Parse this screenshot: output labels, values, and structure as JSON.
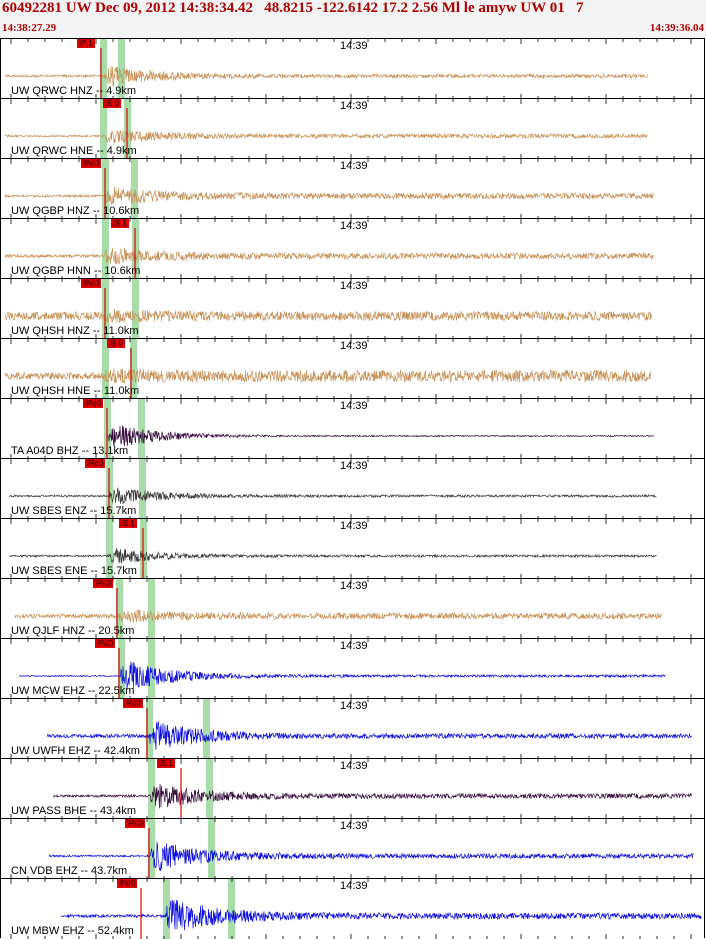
{
  "header": {
    "title": "60492281 UW Dec 09, 2012 14:38:34.42   48.8215 -122.6142 17.2 2.56 Ml le amyw UW 01   7",
    "start_time": "14:38:27.29",
    "end_time": "14:39:36.04"
  },
  "colors": {
    "tan": "#c8935a",
    "dark": "#3c3c3c",
    "blue": "#1010e0",
    "purple": "#3a1040",
    "pick": "#e00000",
    "green": "#a8dca8"
  },
  "traces": [
    {
      "label": "UW QRWC HNZ -- 4.9km",
      "time": "14:39",
      "pick": "iP 1",
      "color": "tan",
      "pickX": 100,
      "start": 4,
      "onset": 102,
      "end": 646,
      "pre": 0.04,
      "peak": 0.42,
      "tail": 0.06,
      "gx": [
        102,
        120
      ]
    },
    {
      "label": "UW QRWC HNE -- 4.9km",
      "time": "14:39",
      "pick": "iS 0",
      "color": "tan",
      "pickX": 126,
      "start": 4,
      "onset": 104,
      "end": 646,
      "pre": 0.03,
      "peak": 0.3,
      "tail": 0.07,
      "gx": [
        102,
        126
      ]
    },
    {
      "label": "UW QGBP HNZ -- 10.6km",
      "time": "14:39",
      "pick": "iPd0",
      "color": "tan",
      "pickX": 104,
      "start": 4,
      "onset": 104,
      "end": 652,
      "pre": 0.04,
      "peak": 0.38,
      "tail": 0.1,
      "gx": [
        104,
        133
      ]
    },
    {
      "label": "UW QGBP HNN -- 10.6km",
      "time": "14:39",
      "pick": "iS 1",
      "color": "tan",
      "pickX": 134,
      "start": 4,
      "onset": 104,
      "end": 652,
      "pre": 0.05,
      "peak": 0.34,
      "tail": 0.1,
      "gx": [
        104,
        134
      ]
    },
    {
      "label": "UW QHSH HNZ -- 11.0km",
      "time": "14:39",
      "pick": "iPd0",
      "color": "tan",
      "pickX": 104,
      "start": 4,
      "onset": 104,
      "end": 650,
      "pre": 0.14,
      "peak": 0.26,
      "tail": 0.15,
      "gx": [
        104,
        134
      ]
    },
    {
      "label": "UW QHSH HNE -- 11.0km",
      "time": "14:39",
      "pick": "iS 0",
      "color": "tan",
      "pickX": 130,
      "start": 4,
      "onset": 104,
      "end": 650,
      "pre": 0.12,
      "peak": 0.28,
      "tail": 0.2,
      "gx": [
        104,
        132
      ]
    },
    {
      "label": "TA A04D BHZ -- 13.1km",
      "time": "14:39",
      "pick": "iPd0",
      "color": "purple",
      "pickX": 106,
      "start": 106,
      "onset": 108,
      "end": 652,
      "pre": 0.01,
      "peak": 0.48,
      "tail": 0.02,
      "gx": [
        106,
        140
      ]
    },
    {
      "label": "UW SBES ENZ -- 15.7km",
      "time": "14:39",
      "pick": "iPd0",
      "color": "dark",
      "pickX": 108,
      "start": 8,
      "onset": 108,
      "end": 655,
      "pre": 0.03,
      "peak": 0.36,
      "tail": 0.04,
      "gx": [
        108,
        141
      ]
    },
    {
      "label": "UW SBES ENE -- 15.7km",
      "time": "14:39",
      "pick": "iS 1",
      "color": "dark",
      "pickX": 142,
      "start": 8,
      "onset": 108,
      "end": 655,
      "pre": 0.03,
      "peak": 0.32,
      "tail": 0.04,
      "gx": [
        108,
        142
      ]
    },
    {
      "label": "UW QJLF HNZ -- 20.5km",
      "time": "14:39",
      "pick": "iPd0",
      "color": "tan",
      "pickX": 116,
      "start": 14,
      "onset": 118,
      "end": 660,
      "pre": 0.07,
      "peak": 0.28,
      "tail": 0.1,
      "gx": [
        118,
        150
      ]
    },
    {
      "label": "UW MCW EHZ -- 22.5km",
      "time": "14:39",
      "pick": "iPd0",
      "color": "blue",
      "pickX": 118,
      "start": 18,
      "onset": 120,
      "end": 664,
      "pre": 0.02,
      "peak": 0.6,
      "tail": 0.04,
      "gx": [
        120,
        150
      ]
    },
    {
      "label": "UW UWFH EHZ -- 42.4km",
      "time": "14:39",
      "pick": "iPd0",
      "color": "blue",
      "pickX": 146,
      "start": 46,
      "onset": 148,
      "end": 690,
      "pre": 0.06,
      "peak": 0.58,
      "tail": 0.08,
      "gx": [
        148,
        205
      ]
    },
    {
      "label": "UW PASS BHE -- 43.4km",
      "time": "14:39",
      "pick": "iS 1",
      "color": "purple",
      "pickX": 180,
      "start": 52,
      "onset": 150,
      "end": 690,
      "pre": 0.04,
      "peak": 0.5,
      "tail": 0.08,
      "gx": [
        150,
        208
      ]
    },
    {
      "label": "CN VDB EHZ -- 43.7km",
      "time": "14:39",
      "pick": "iPd0",
      "color": "blue",
      "pickX": 148,
      "start": 48,
      "onset": 150,
      "end": 692,
      "pre": 0.03,
      "peak": 0.62,
      "tail": 0.08,
      "gx": [
        150,
        210
      ]
    },
    {
      "label": "UW MBW EHZ -- 52.4km",
      "time": "14:39",
      "pick": "iPd0",
      "color": "blue",
      "pickX": 140,
      "start": 60,
      "onset": 165,
      "end": 700,
      "pre": 0.05,
      "peak": 0.7,
      "tail": 0.1,
      "gx": [
        165,
        230
      ]
    }
  ]
}
